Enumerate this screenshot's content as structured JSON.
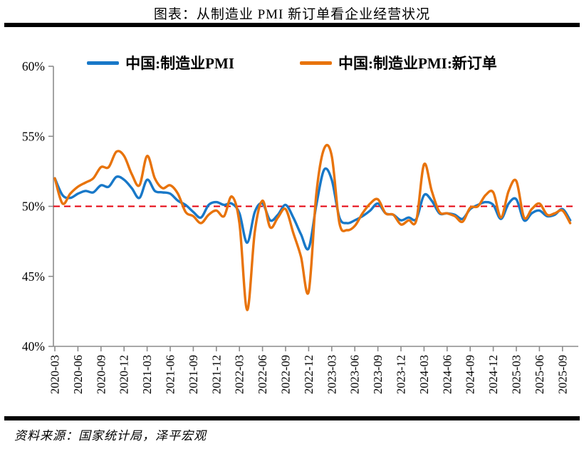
{
  "title": "图表：从制造业 PMI 新订单看企业经营状况",
  "source": "资料来源：国家统计局，泽平宏观",
  "colors": {
    "pmi_line": "#1878C8",
    "new_orders_line": "#E8730B",
    "ref_line": "#E4000C",
    "axis": "#8C8C8C",
    "text": "#000000",
    "rule": "#000000"
  },
  "legend": [
    {
      "label": "中国:制造业PMI",
      "color": "#1878C8"
    },
    {
      "label": "中国:制造业PMI:新订单",
      "color": "#E8730B"
    }
  ],
  "chart_data": {
    "type": "line",
    "title": "图表：从制造业 PMI 新订单看企业经营状况",
    "xlabel": "",
    "ylabel": "",
    "ylim": [
      40,
      60
    ],
    "y_ticks": [
      40,
      45,
      50,
      55,
      60
    ],
    "y_tick_suffix": "%",
    "grid": false,
    "legend_position": "top",
    "ref_line": {
      "value": 50,
      "color": "#E4000C",
      "style": "dashed"
    },
    "x": [
      "2020-03",
      "2020-04",
      "2020-05",
      "2020-06",
      "2020-07",
      "2020-08",
      "2020-09",
      "2020-10",
      "2020-11",
      "2020-12",
      "2021-01",
      "2021-02",
      "2021-03",
      "2021-04",
      "2021-05",
      "2021-06",
      "2021-07",
      "2021-08",
      "2021-09",
      "2021-10",
      "2021-11",
      "2021-12",
      "2022-01",
      "2022-02",
      "2022-03",
      "2022-04",
      "2022-05",
      "2022-06",
      "2022-07",
      "2022-08",
      "2022-09",
      "2022-10",
      "2022-11",
      "2022-12",
      "2023-01",
      "2023-02",
      "2023-03",
      "2023-04",
      "2023-05",
      "2023-06",
      "2023-07",
      "2023-08",
      "2023-09",
      "2023-10",
      "2023-11",
      "2023-12",
      "2024-01",
      "2024-02",
      "2024-03",
      "2024-04",
      "2024-05",
      "2024-06",
      "2024-07",
      "2024-08",
      "2024-09",
      "2024-10",
      "2024-11",
      "2024-12",
      "2025-01",
      "2025-02",
      "2025-03",
      "2025-04",
      "2025-05",
      "2025-06",
      "2025-07",
      "2025-08",
      "2025-09",
      "2025-10"
    ],
    "x_tick_labels": [
      "2020-03",
      "2020-06",
      "2020-09",
      "2020-12",
      "2021-03",
      "2021-06",
      "2021-09",
      "2021-12",
      "2022-03",
      "2022-06",
      "2022-09",
      "2022-12",
      "2023-03",
      "2023-06",
      "2023-09",
      "2023-12",
      "2024-03",
      "2024-06",
      "2024-09",
      "2024-12",
      "2025-03",
      "2025-06",
      "2025-09"
    ],
    "series": [
      {
        "name": "中国:制造业PMI",
        "color": "#1878C8",
        "values": [
          52.0,
          50.8,
          50.6,
          50.9,
          51.1,
          51.0,
          51.5,
          51.4,
          52.1,
          51.9,
          51.3,
          50.6,
          51.9,
          51.1,
          51.0,
          50.9,
          50.4,
          50.1,
          49.6,
          49.2,
          50.1,
          50.3,
          50.1,
          50.2,
          49.5,
          47.4,
          49.6,
          50.2,
          49.0,
          49.4,
          50.1,
          49.2,
          48.0,
          47.0,
          50.1,
          52.6,
          51.9,
          49.2,
          48.8,
          49.0,
          49.3,
          49.7,
          50.2,
          49.5,
          49.4,
          49.0,
          49.2,
          49.1,
          50.8,
          50.4,
          49.5,
          49.5,
          49.4,
          49.1,
          49.8,
          50.1,
          50.3,
          50.1,
          49.1,
          50.2,
          50.5,
          49.0,
          49.5,
          49.7,
          49.3,
          49.4,
          49.8,
          49.0
        ]
      },
      {
        "name": "中国:制造业PMI:新订单",
        "color": "#E8730B",
        "values": [
          52.0,
          50.2,
          50.9,
          51.4,
          51.7,
          52.0,
          52.8,
          52.8,
          53.9,
          53.6,
          52.3,
          51.5,
          53.6,
          52.0,
          51.3,
          51.5,
          50.9,
          49.6,
          49.3,
          48.8,
          49.4,
          49.7,
          49.3,
          50.7,
          48.8,
          42.6,
          48.2,
          50.4,
          48.5,
          49.2,
          49.8,
          48.1,
          46.4,
          43.9,
          50.9,
          54.1,
          53.6,
          48.8,
          48.3,
          48.6,
          49.5,
          50.2,
          50.5,
          49.5,
          49.4,
          48.7,
          49.0,
          49.0,
          53.0,
          51.1,
          49.6,
          49.5,
          49.3,
          48.9,
          49.9,
          50.0,
          50.8,
          51.0,
          49.2,
          51.1,
          51.8,
          49.2,
          49.8,
          50.2,
          49.4,
          49.5,
          49.7,
          48.8
        ]
      }
    ]
  }
}
